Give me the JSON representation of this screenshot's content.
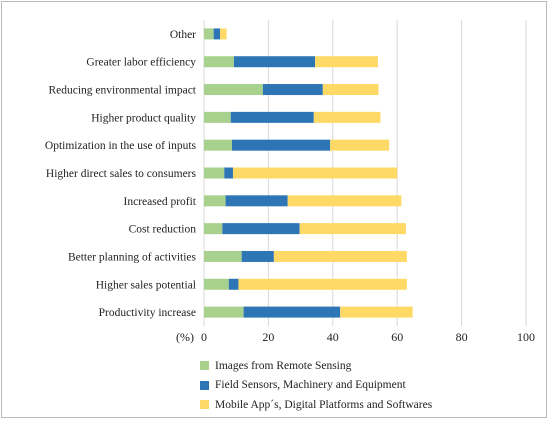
{
  "chart_data": {
    "type": "bar",
    "orientation": "horizontal",
    "stacked": true,
    "title": "",
    "xlabel": "",
    "unit_label": "(%)",
    "xlim": [
      0,
      100
    ],
    "xticks": [
      0,
      20,
      40,
      60,
      80,
      100
    ],
    "grid": "vertical",
    "legend_position": "bottom",
    "categories": [
      "Other",
      "Greater labor efficiency",
      "Reducing environmental impact",
      "Higher product quality",
      "Optimization in the use of inputs",
      "Higher direct sales to consumers",
      "Increased profit",
      "Cost reduction",
      "Better planning of activities",
      "Higher sales potential",
      "Productivity increase"
    ],
    "series": [
      {
        "name": "Images from Remote Sensing",
        "color": "#a8d18d",
        "values": [
          3,
          9.3,
          18.3,
          8.3,
          8.7,
          6.3,
          6.7,
          5.7,
          11.7,
          7.7,
          12.3
        ]
      },
      {
        "name": "Field Sensors, Machinery and Equipment",
        "color": "#2e75b6",
        "values": [
          2,
          25.2,
          18.6,
          25.8,
          30.5,
          2.7,
          19.3,
          24,
          10,
          3,
          30
        ]
      },
      {
        "name": "Mobile App´s, Digital Platforms and Softwares",
        "color": "#ffd966",
        "values": [
          2,
          19.5,
          17.3,
          20.7,
          18.3,
          51,
          35.3,
          33,
          41.3,
          52.3,
          22.5
        ]
      }
    ]
  }
}
